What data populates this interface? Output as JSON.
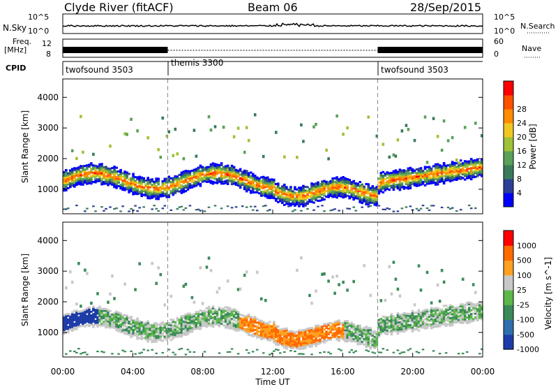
{
  "header": {
    "radar": "Clyde River (fitACF)",
    "beam": "Beam 06",
    "date": "28/Sep/2015"
  },
  "noise_panel": {
    "left_label": "N.Sky",
    "left_ticks": [
      "10^5",
      "10^0"
    ],
    "right_ticks": [
      "10^5",
      "10^0"
    ],
    "right_label": "N.Search"
  },
  "freq_panel": {
    "left_label_1": "Freq.",
    "left_label_2": "[MHz]",
    "left_ticks": [
      "12",
      "8"
    ],
    "right_ticks": [
      "60",
      "0"
    ],
    "right_label": "Nave"
  },
  "cpid": {
    "label": "CPID",
    "segments": [
      {
        "name": "twofsound 3503",
        "start_hour": 0
      },
      {
        "name": "themis 3300",
        "start_hour": 6
      },
      {
        "name": "twofsound 3503",
        "start_hour": 18
      }
    ]
  },
  "chart_data": [
    {
      "type": "heatmap",
      "quantity": "Power",
      "ylabel": "Slant Range [km]",
      "xlabel": "Time UT",
      "xlim_hours": [
        0,
        24
      ],
      "ylim": [
        200,
        4600
      ],
      "yticks": [
        1000,
        2000,
        3000,
        4000
      ],
      "colorbar": {
        "label": "Power [dB]",
        "ticks": [
          4,
          8,
          12,
          16,
          20,
          24,
          28
        ],
        "colors": [
          "#0000ff",
          "#2d3f96",
          "#3a7a5a",
          "#5aa058",
          "#a0c238",
          "#f0c820",
          "#ff8c00",
          "#ff5000",
          "#ff0000"
        ]
      }
    },
    {
      "type": "heatmap",
      "quantity": "Velocity",
      "ylabel": "Slant Range [km]",
      "xlabel": "Time UT",
      "xlim_hours": [
        0,
        24
      ],
      "ylim": [
        200,
        4600
      ],
      "yticks": [
        1000,
        2000,
        3000,
        4000
      ],
      "colorbar": {
        "label": "Velocity [m s^-1]",
        "ticks": [
          "1000",
          "500",
          "100",
          "25",
          "-25",
          "-100",
          "-500",
          "-1000"
        ],
        "colors": [
          "#1e3ca8",
          "#2f6fae",
          "#3b8a5a",
          "#5db84a",
          "#c8c8c8",
          "#ffa020",
          "#ff6a00",
          "#ff0000"
        ]
      }
    }
  ],
  "time_axis": {
    "ticks": [
      "00:00",
      "04:00",
      "08:00",
      "12:00",
      "16:00",
      "20:00",
      "00:00"
    ],
    "label": "Time UT"
  }
}
